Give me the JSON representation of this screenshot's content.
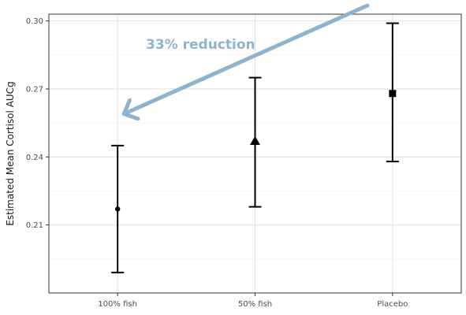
{
  "chart_data": {
    "type": "scatter",
    "title": "",
    "xlabel": "",
    "ylabel": "Estimated Mean Cortisol AUCg",
    "categories": [
      "100% fish",
      "50% fish",
      "Placebo"
    ],
    "ylim": [
      0.18,
      0.303
    ],
    "yticks": [
      0.21,
      0.24,
      0.27,
      0.3
    ],
    "ytick_labels": [
      "0.21",
      "0.24",
      "0.27",
      "0.30"
    ],
    "grid": true,
    "series": [
      {
        "points": [
          {
            "category": "100% fish",
            "value": 0.217,
            "lower": 0.189,
            "upper": 0.245,
            "marker": "circle"
          },
          {
            "category": "50% fish",
            "value": 0.247,
            "lower": 0.218,
            "upper": 0.275,
            "marker": "triangle"
          },
          {
            "category": "Placebo",
            "value": 0.268,
            "lower": 0.238,
            "upper": 0.299,
            "marker": "square"
          }
        ]
      }
    ],
    "annotation": {
      "text": "33% reduction",
      "color": "#8fb3cc",
      "points_to": {
        "category": "100% fish",
        "value": 0.259
      }
    }
  }
}
